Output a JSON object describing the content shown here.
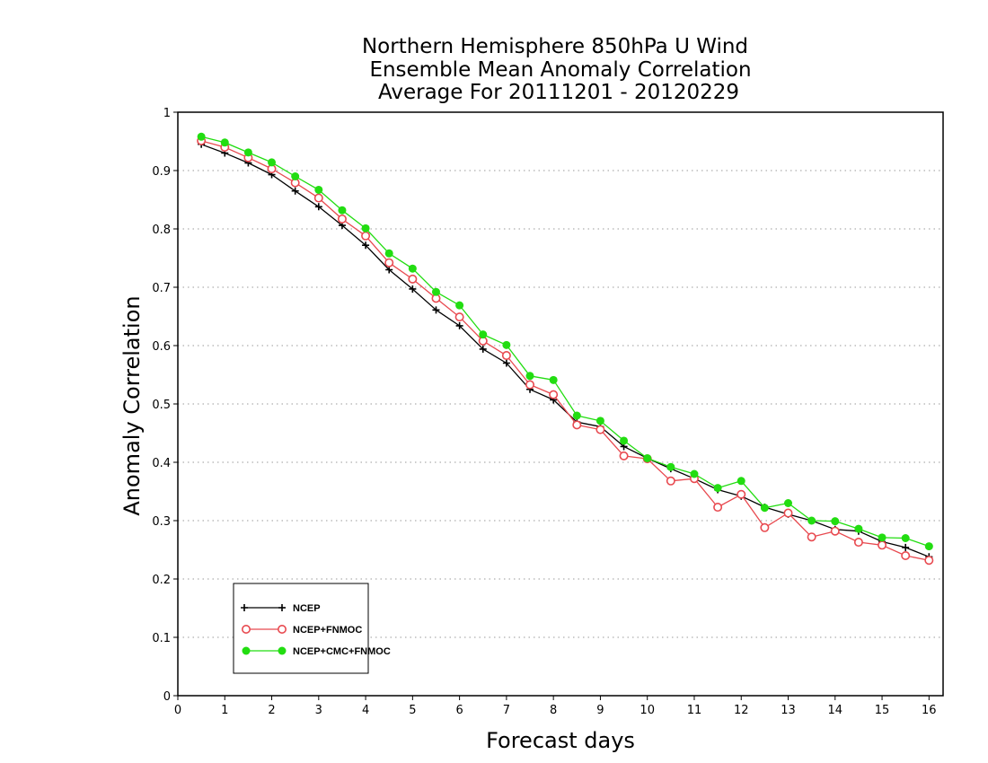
{
  "chart_data": {
    "type": "line",
    "title_lines": [
      "Northern Hemisphere 850hPa U Wind",
      "Ensemble Mean Anomaly Correlation",
      "Average For 20111201 - 20120229"
    ],
    "xlabel": "Forecast days",
    "ylabel": "Anomaly Correlation",
    "xlim": [
      0,
      16.3
    ],
    "ylim": [
      0,
      1
    ],
    "xticks": [
      "0",
      "1",
      "2",
      "3",
      "4",
      "5",
      "6",
      "7",
      "8",
      "9",
      "10",
      "11",
      "12",
      "13",
      "14",
      "15",
      "16"
    ],
    "yticks": [
      "0",
      "0.1",
      "0.2",
      "0.3",
      "0.4",
      "0.5",
      "0.6",
      "0.7",
      "0.8",
      "0.9",
      "1"
    ],
    "grid": "horizontal dotted",
    "legend_position": "bottom-left",
    "x": [
      0.5,
      1,
      1.5,
      2,
      2.5,
      3,
      3.5,
      4,
      4.5,
      5,
      5.5,
      6,
      6.5,
      7,
      7.5,
      8,
      8.5,
      9,
      9.5,
      10,
      10.5,
      11,
      11.5,
      12,
      12.5,
      13,
      13.5,
      14,
      14.5,
      15,
      15.5,
      16
    ],
    "series": [
      {
        "name": "NCEP",
        "color": "#000000",
        "marker": "plus",
        "values": [
          0.945,
          0.93,
          0.913,
          0.893,
          0.865,
          0.838,
          0.806,
          0.772,
          0.73,
          0.697,
          0.661,
          0.634,
          0.594,
          0.57,
          0.525,
          0.507,
          0.469,
          0.461,
          0.427,
          0.407,
          0.389,
          0.372,
          0.353,
          0.342,
          0.323,
          0.311,
          0.3,
          0.285,
          0.282,
          0.264,
          0.254,
          0.238
        ]
      },
      {
        "name": "NCEP+FNMOC",
        "color": "#e8494f",
        "marker": "open-circle",
        "values": [
          0.951,
          0.94,
          0.922,
          0.903,
          0.879,
          0.853,
          0.817,
          0.788,
          0.742,
          0.714,
          0.681,
          0.649,
          0.608,
          0.583,
          0.533,
          0.516,
          0.464,
          0.456,
          0.411,
          0.406,
          0.368,
          0.372,
          0.323,
          0.345,
          0.288,
          0.313,
          0.272,
          0.282,
          0.263,
          0.258,
          0.24,
          0.232
        ]
      },
      {
        "name": "NCEP+CMC+FNMOC",
        "color": "#22dd11",
        "marker": "filled-circle",
        "values": [
          0.958,
          0.948,
          0.931,
          0.914,
          0.89,
          0.867,
          0.832,
          0.801,
          0.758,
          0.732,
          0.692,
          0.669,
          0.619,
          0.601,
          0.548,
          0.541,
          0.48,
          0.471,
          0.437,
          0.407,
          0.392,
          0.38,
          0.356,
          0.368,
          0.322,
          0.33,
          0.3,
          0.299,
          0.286,
          0.271,
          0.27,
          0.256
        ]
      }
    ]
  }
}
